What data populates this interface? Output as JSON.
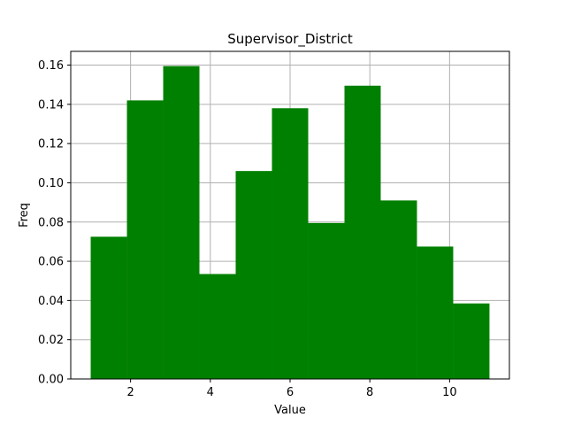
{
  "chart_data": {
    "type": "bar",
    "subtype": "histogram",
    "title": "Supervisor_District",
    "xlabel": "Value",
    "ylabel": "Freq",
    "bin_edges": [
      1,
      1.909,
      2.818,
      3.727,
      4.636,
      5.545,
      6.455,
      7.364,
      8.273,
      9.182,
      10.091,
      11
    ],
    "values": [
      0.0725,
      0.142,
      0.1595,
      0.0535,
      0.106,
      0.138,
      0.0795,
      0.1495,
      0.091,
      0.0675,
      0.0385
    ],
    "xlim": [
      0.5,
      11.5
    ],
    "ylim": [
      0,
      0.167
    ],
    "xticks": [
      2,
      4,
      6,
      8,
      10
    ],
    "xtick_labels": [
      "2",
      "4",
      "6",
      "8",
      "10"
    ],
    "yticks": [
      0.0,
      0.02,
      0.04,
      0.06,
      0.08,
      0.1,
      0.12,
      0.14,
      0.16
    ],
    "ytick_labels": [
      "0.00",
      "0.02",
      "0.04",
      "0.06",
      "0.08",
      "0.10",
      "0.12",
      "0.14",
      "0.16"
    ],
    "grid": true,
    "bar_color": "#008000",
    "grid_color": "#b0b0b0",
    "legend": "none"
  }
}
